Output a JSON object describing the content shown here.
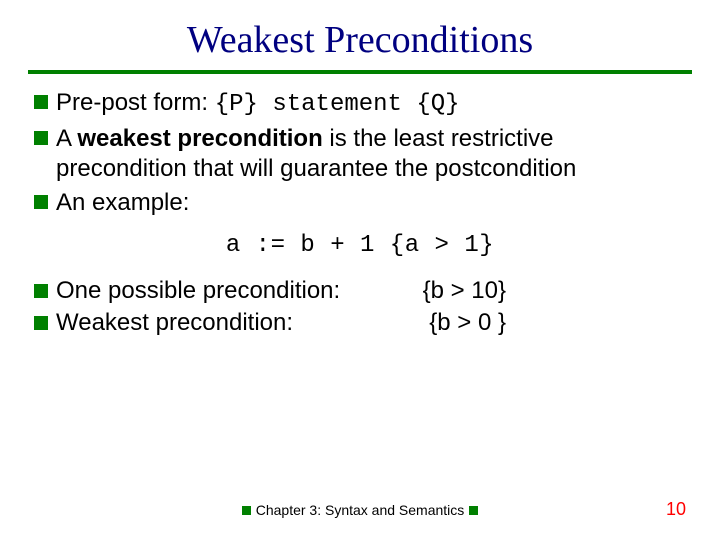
{
  "title": "Weakest Preconditions",
  "bullets": {
    "b1_pre": "Pre-post form:  ",
    "b1_code": "{P} statement {Q}",
    "b2_a": "A ",
    "b2_bold": "weakest precondition",
    "b2_b": " is the least restrictive precondition that will guarantee the postcondition",
    "b3": "An example:"
  },
  "example_code": "a := b + 1   {a > 1}",
  "possible": {
    "label": "One possible precondition:",
    "value": "{b > 10}"
  },
  "weakest": {
    "label": "Weakest precondition:",
    "value": "{b > 0 }"
  },
  "footer": "Chapter 3: Syntax and Semantics",
  "page": "10",
  "colors": {
    "title": "#000080",
    "accent": "#008000",
    "page": "#ff0000"
  }
}
